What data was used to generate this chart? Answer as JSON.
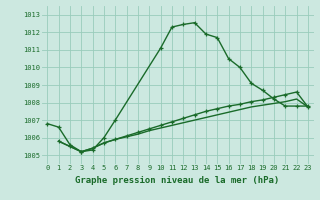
{
  "title": "Graphe pression niveau de la mer (hPa)",
  "bg_color": "#cce8e0",
  "grid_color": "#99ccbb",
  "line_color": "#1a6b2a",
  "ylim": [
    1004.5,
    1013.5
  ],
  "yticks": [
    1005,
    1006,
    1007,
    1008,
    1009,
    1010,
    1011,
    1012,
    1013
  ],
  "xlim": [
    -0.5,
    23.5
  ],
  "xticks": [
    0,
    1,
    2,
    3,
    4,
    5,
    6,
    7,
    8,
    9,
    10,
    11,
    12,
    13,
    14,
    15,
    16,
    17,
    18,
    19,
    20,
    21,
    22,
    23
  ],
  "curve1_x": [
    0,
    1,
    2,
    3,
    4,
    5,
    6,
    10,
    11,
    12,
    13,
    14,
    15,
    16,
    17,
    18,
    19,
    20,
    21,
    22,
    23
  ],
  "curve1_y": [
    1006.8,
    1006.6,
    1005.6,
    1005.2,
    1005.3,
    1006.0,
    1007.0,
    1011.1,
    1012.3,
    1012.45,
    1012.55,
    1011.9,
    1011.7,
    1010.5,
    1010.0,
    1009.1,
    1008.7,
    1008.2,
    1007.8,
    1007.8,
    1007.8
  ],
  "curve2_x": [
    1,
    2,
    3,
    4,
    5,
    6,
    7,
    8,
    9,
    10,
    11,
    12,
    13,
    14,
    15,
    16,
    17,
    18,
    19,
    20,
    21,
    22,
    23
  ],
  "curve2_y": [
    1005.8,
    1005.5,
    1005.2,
    1005.4,
    1005.7,
    1005.9,
    1006.1,
    1006.3,
    1006.5,
    1006.7,
    1006.9,
    1007.1,
    1007.3,
    1007.5,
    1007.65,
    1007.8,
    1007.9,
    1008.05,
    1008.15,
    1008.3,
    1008.45,
    1008.6,
    1007.75
  ],
  "curve3_x": [
    1,
    2,
    3,
    4,
    5,
    6,
    7,
    8,
    9,
    10,
    11,
    12,
    13,
    14,
    15,
    16,
    17,
    18,
    19,
    20,
    21,
    22,
    23
  ],
  "curve3_y": [
    1005.8,
    1005.5,
    1005.2,
    1005.4,
    1005.7,
    1005.9,
    1006.05,
    1006.2,
    1006.4,
    1006.55,
    1006.7,
    1006.85,
    1007.0,
    1007.15,
    1007.3,
    1007.45,
    1007.6,
    1007.75,
    1007.85,
    1007.95,
    1008.05,
    1008.2,
    1007.75
  ],
  "marker": "+",
  "markersize": 3.5,
  "linewidth": 1.0,
  "xlabel_fontsize": 6.5,
  "tick_fontsize": 5.0
}
